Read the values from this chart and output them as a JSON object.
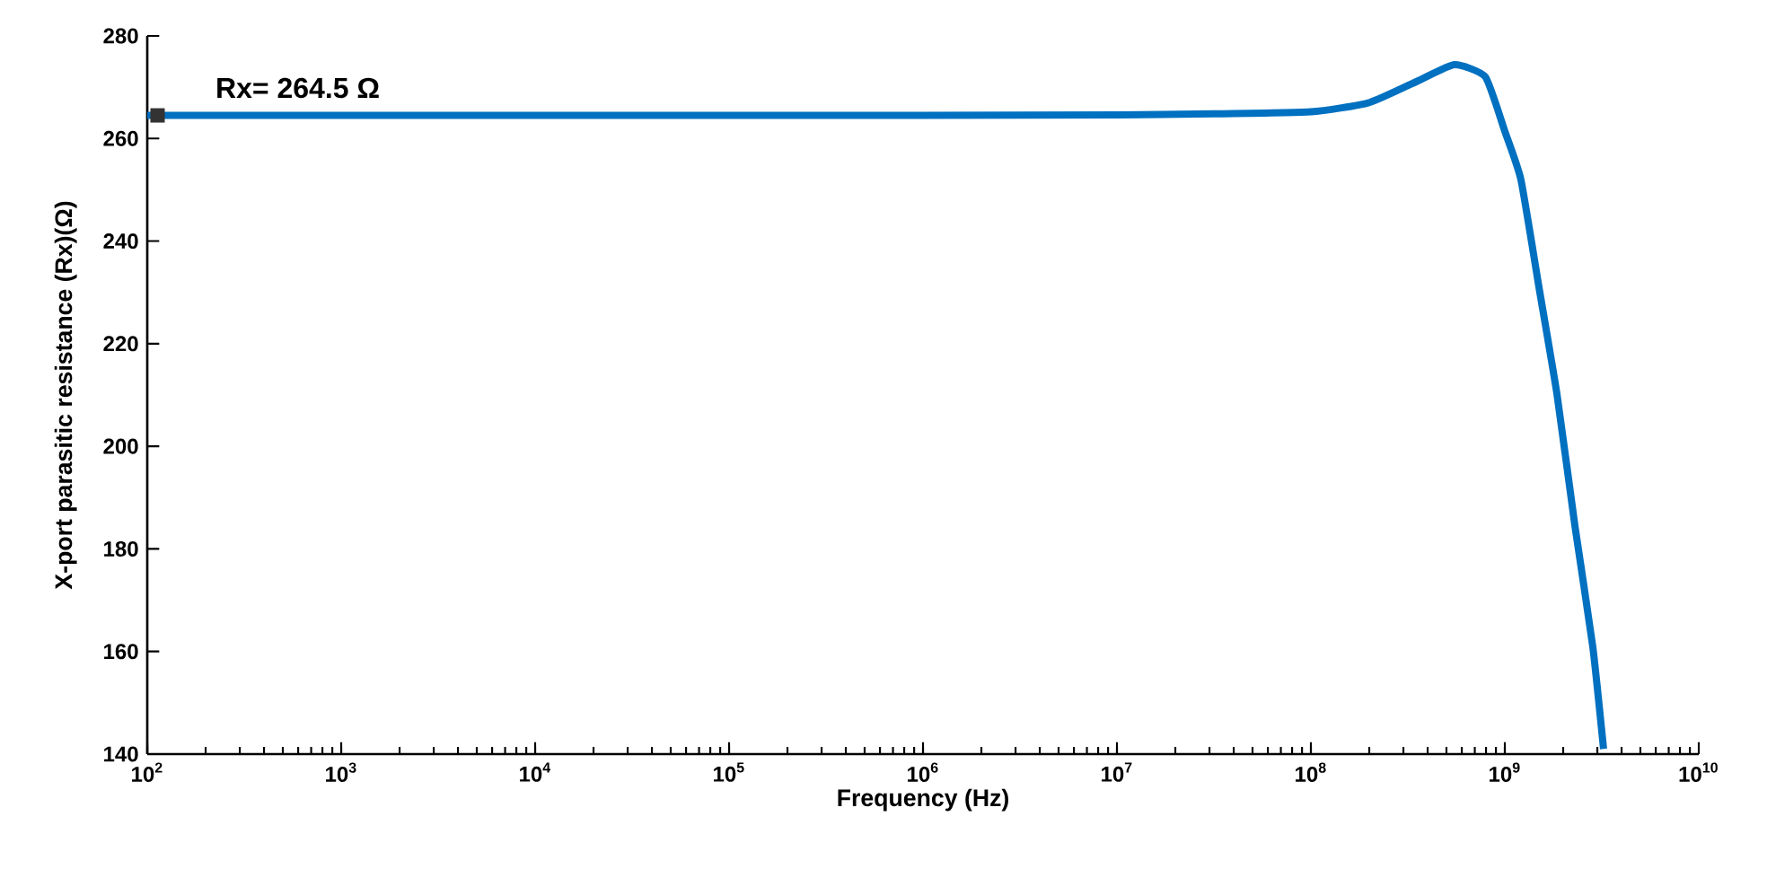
{
  "chart_data": {
    "type": "line",
    "xlabel": "Frequency (Hz)",
    "ylabel": "X-port parasitic resistance (Rx)(Ω)",
    "log": "x",
    "grid": false,
    "marker": "none",
    "line_style": "solid",
    "x": [
      100,
      1000,
      10000,
      100000,
      1000000,
      10000000,
      31600000,
      100000000,
      200000000,
      355000000,
      550000000,
      794000000,
      1000000000,
      1210000000,
      1500000000,
      1860000000,
      2300000000,
      2840000000,
      3230000000
    ],
    "series": [
      {
        "color": "#0070c0",
        "values": [
          264.5,
          264.5,
          264.5,
          264.5,
          264.5,
          264.6,
          264.8,
          265.2,
          267,
          271.2,
          274.4,
          272,
          261.4,
          252,
          231,
          210,
          184.4,
          161,
          141
        ]
      }
    ],
    "annotations": [
      {
        "text": "Rx= 264.5 Ω",
        "x": 113,
        "y": 264.5
      }
    ],
    "xlim": [
      100,
      10000000000
    ],
    "ylim": [
      140,
      280
    ],
    "xticks": [
      {
        "value": 100,
        "label": "10$^{2}$"
      },
      {
        "value": 1000,
        "label": "10$^{3}$"
      },
      {
        "value": 10000,
        "label": "10$^{4}$"
      },
      {
        "value": 100000,
        "label": "10$^{5}$"
      },
      {
        "value": 1000000,
        "label": "10$^{6}$"
      },
      {
        "value": 10000000,
        "label": "10$^{7}$"
      },
      {
        "value": 100000000,
        "label": "10$^{8}$"
      },
      {
        "value": 1000000000,
        "label": "10$^{9}$"
      },
      {
        "value": 10000000000,
        "label": "10$^{10}$"
      }
    ],
    "yticks": [
      140,
      160,
      180,
      200,
      220,
      240,
      260,
      280
    ]
  }
}
